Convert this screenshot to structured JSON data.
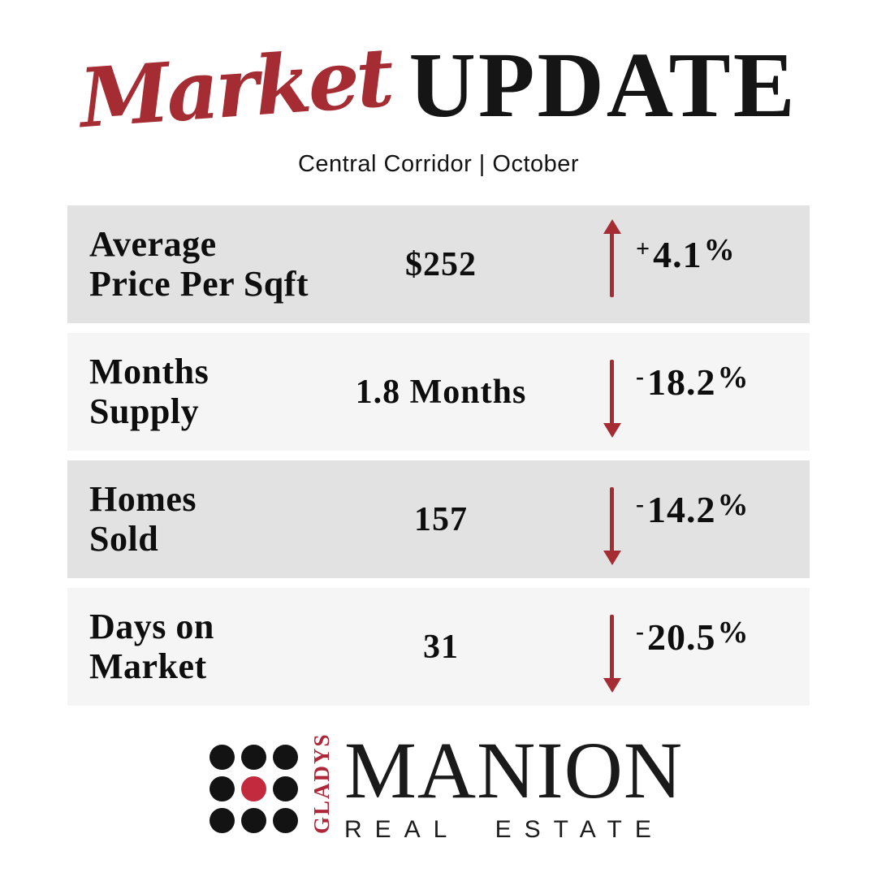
{
  "header": {
    "title_script": "Market",
    "title_main": "UPDATE",
    "subtitle": "Central Corridor | October"
  },
  "colors": {
    "accent_red": "#a62c33",
    "logo_dot_red": "#c42a3e",
    "logo_text_red": "#ad2738",
    "row_shade_dark": "#e2e2e2",
    "row_shade_light": "#f5f5f5",
    "text": "#0e0e0e"
  },
  "stats": [
    {
      "label_line1": "Average",
      "label_line2": "Price Per Sqft",
      "value": "$252",
      "trend": "up",
      "change": "+4.1%",
      "change_sign": "+",
      "change_value": "4.1",
      "change_unit": "%"
    },
    {
      "label_line1": "Months",
      "label_line2": "Supply",
      "value": "1.8 Months",
      "trend": "down",
      "change": "-18.2%",
      "change_sign": "-",
      "change_value": "18.2",
      "change_unit": "%"
    },
    {
      "label_line1": "Homes",
      "label_line2": "Sold",
      "value": "157",
      "trend": "down",
      "change": "-14.2%",
      "change_sign": "-",
      "change_value": "14.2",
      "change_unit": "%"
    },
    {
      "label_line1": "Days on",
      "label_line2": "Market",
      "value": "31",
      "trend": "down",
      "change": "-20.5%",
      "change_sign": "-",
      "change_value": "20.5",
      "change_unit": "%"
    }
  ],
  "logo": {
    "vertical_text": "GLADYS",
    "name": "MANION",
    "tagline": "REAL ESTATE"
  }
}
